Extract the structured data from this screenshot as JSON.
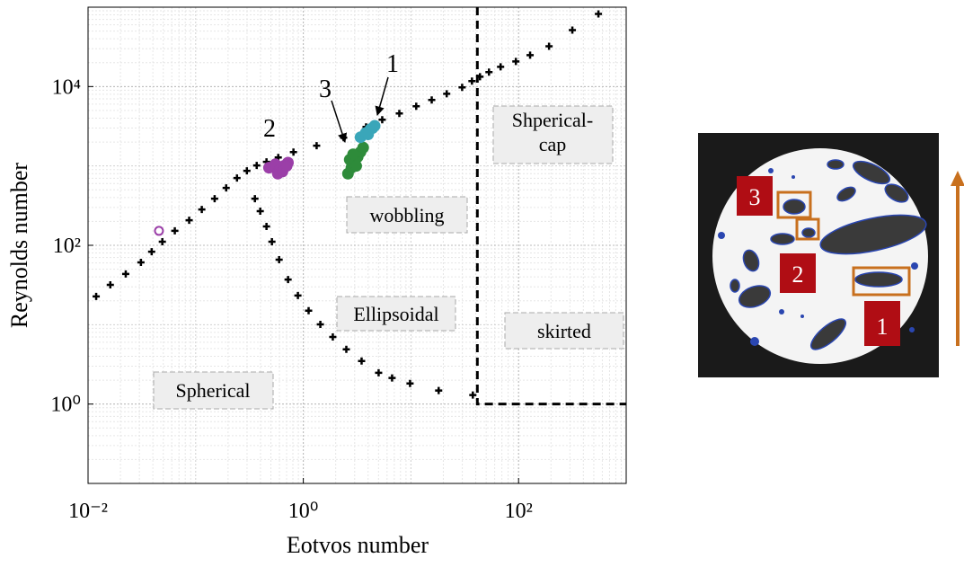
{
  "chart_data": {
    "type": "scatter",
    "x_label": "Eotvos number",
    "y_label": "Reynolds number",
    "xscale": "log",
    "yscale": "log",
    "xlim": [
      0.01,
      1000
    ],
    "ylim": [
      0.1,
      100000
    ],
    "xticks": [
      {
        "value": 0.01,
        "label": "10⁻²"
      },
      {
        "value": 1,
        "label": "10⁰"
      },
      {
        "value": 100,
        "label": "10²"
      }
    ],
    "yticks": [
      {
        "value": 1,
        "label": "10⁰"
      },
      {
        "value": 100,
        "label": "10²"
      },
      {
        "value": 10000,
        "label": "10⁴"
      }
    ],
    "grid": true,
    "series": [
      {
        "marker": "plus",
        "color": "#000000",
        "x": [
          0.0119,
          0.0161,
          0.0224,
          0.031,
          0.039,
          0.049,
          0.064,
          0.087,
          0.114,
          0.15,
          0.192,
          0.242,
          0.299,
          0.369,
          0.455,
          0.585,
          0.81,
          1.33,
          2.37,
          3.83,
          5.41,
          7.8,
          11.2,
          15.6,
          21.5,
          29.9,
          36.9,
          43.8,
          53.1,
          68.1,
          94.4,
          128,
          192,
          316,
          552
        ],
        "values": [
          22.7,
          31.8,
          43.5,
          61,
          83,
          111,
          152,
          207,
          283,
          387,
          529,
          703,
          867,
          1013,
          1125,
          1280,
          1497,
          1797,
          2270,
          3100,
          3820,
          4580,
          5640,
          6770,
          8120,
          9750,
          11700,
          13300,
          15200,
          17700,
          20700,
          24900,
          32200,
          51500,
          82300
        ]
      },
      {
        "marker": "plus",
        "color": "#000000",
        "x": [
          0.355,
          0.398,
          0.455,
          0.511,
          0.596,
          0.722,
          0.891,
          1.12,
          1.44,
          1.88,
          2.51,
          3.48,
          5.01,
          6.68,
          9.81,
          18.1,
          37.6
        ],
        "values": [
          387,
          269,
          173,
          111,
          66,
          37,
          23.3,
          15.0,
          10.1,
          7.0,
          4.89,
          3.49,
          2.48,
          2.13,
          1.82,
          1.48,
          1.3
        ]
      },
      {
        "marker": "dashed-line",
        "color": "#000000",
        "x": [
          41.4,
          41.4,
          1000
        ],
        "values": [
          100000,
          1,
          1
        ]
      },
      {
        "marker": "circle",
        "color": "#9b3fa8",
        "x": [
          0.48,
          0.55,
          0.6,
          0.66,
          0.72,
          0.58,
          0.64,
          0.7
        ],
        "values": [
          950,
          1050,
          900,
          1000,
          1100,
          800,
          850,
          1000
        ]
      },
      {
        "marker": "open-circle",
        "color": "#9b3fa8",
        "x": [
          0.0456
        ],
        "values": [
          152
        ]
      },
      {
        "marker": "circle",
        "color": "#2e8b3a",
        "x": [
          2.6,
          2.8,
          3.0,
          3.2,
          3.4,
          3.6,
          2.7,
          2.9,
          3.1
        ],
        "values": [
          800,
          950,
          1100,
          1300,
          1500,
          1700,
          1200,
          1400,
          1000
        ]
      },
      {
        "marker": "circle",
        "color": "#3aa6b9",
        "x": [
          3.4,
          3.8,
          4.2,
          4.6,
          4.0,
          4.4
        ],
        "values": [
          2300,
          2600,
          2900,
          3200,
          2500,
          3000
        ]
      }
    ],
    "annotations": [
      "1",
      "2",
      "3"
    ],
    "regions": [
      [
        "Shperical-",
        "cap"
      ],
      [
        "wobbling"
      ],
      [
        "Ellipsoidal"
      ],
      [
        "skirted"
      ],
      [
        "Spherical"
      ]
    ]
  },
  "photo": {
    "labels": [
      "3",
      "2",
      "1"
    ]
  }
}
